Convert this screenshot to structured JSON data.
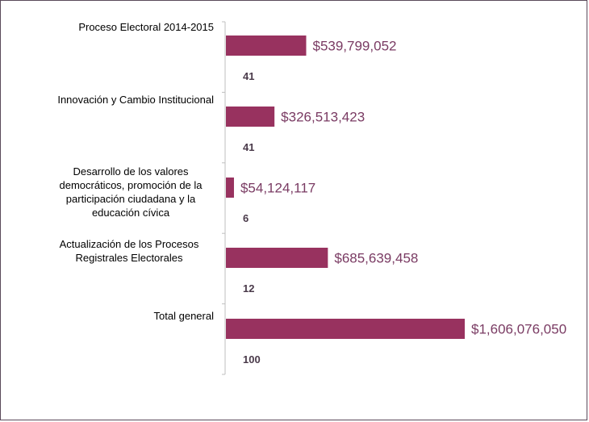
{
  "colors": {
    "bar": "#98325f",
    "value_text": "#7a3b63",
    "count_text": "#4a3a4a",
    "axis": "#bfbfbf"
  },
  "chart_data": {
    "type": "bar",
    "orientation": "horizontal",
    "categories": [
      "Proceso Electoral 2014-2015",
      "Innovación y Cambio Institucional",
      "Desarrollo de los valores democráticos, promoción de la participación ciudadana y la educación cívica",
      "Actualización de los Procesos Registrales Electorales",
      "Total general"
    ],
    "series": [
      {
        "values": [
          539799052,
          326513423,
          54124117,
          685639458,
          1606076050
        ],
        "value_labels": [
          "$539,799,052",
          "$326,513,423",
          "$54,124,117",
          "$685,639,458",
          "$1,606,076,050"
        ]
      },
      {
        "values": [
          41,
          41,
          6,
          12,
          100
        ],
        "value_labels": [
          "41",
          "41",
          "6",
          "12",
          "100"
        ]
      }
    ],
    "xlim": [
      0,
      1606076050
    ],
    "grid": false,
    "legend": "none"
  }
}
